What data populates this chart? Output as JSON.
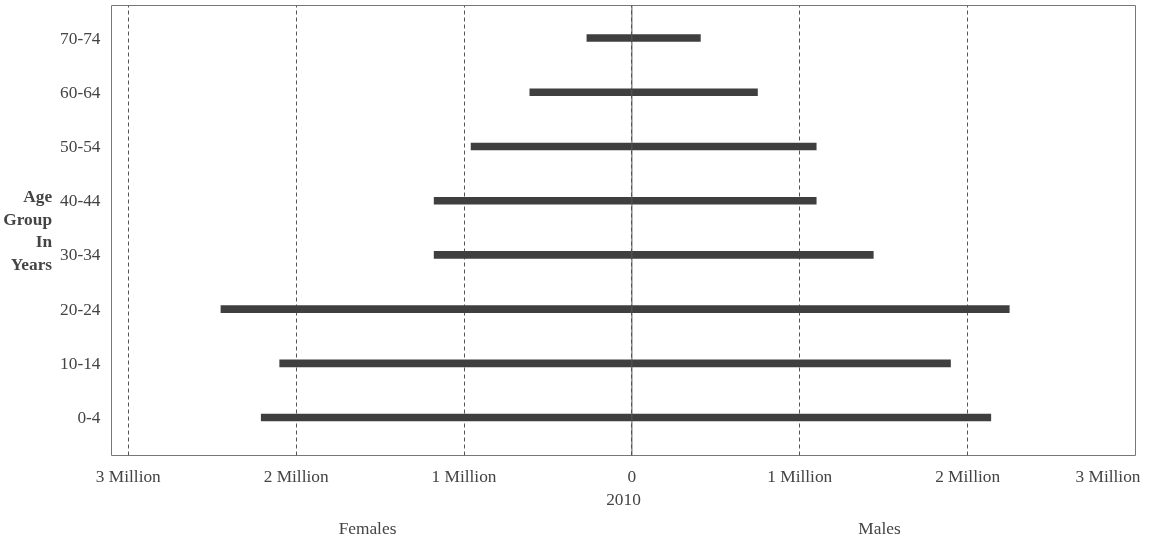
{
  "chart_data": {
    "type": "bar",
    "orientation": "horizontal",
    "stacked": true,
    "xlabel": "2010",
    "ylabel": "Age Group In Years",
    "categories": [
      "70-74",
      "60-64",
      "50-54",
      "40-44",
      "30-34",
      "20-24",
      "10-14",
      "0-4"
    ],
    "series": [
      {
        "color": "#3f3f3f",
        "values": [
          -0.27,
          -0.61,
          -0.96,
          -1.18,
          -1.18,
          -2.45,
          -2.1,
          -2.21
        ]
      },
      {
        "color": "#3f3f3f",
        "values": [
          0.41,
          0.75,
          1.1,
          1.1,
          1.44,
          2.25,
          1.9,
          2.14
        ]
      }
    ],
    "xlim": [
      -3.1,
      3.0
    ],
    "xticks": [
      {
        "value": -3,
        "label": "3 Million"
      },
      {
        "value": -2,
        "label": "2 Million"
      },
      {
        "value": -1,
        "label": "1 Million"
      },
      0,
      {
        "value": 1,
        "label": "1 Million"
      },
      {
        "value": 2,
        "label": "2 Million"
      },
      {
        "value": 3,
        "label": "3 Million"
      }
    ],
    "grid": "x",
    "annotations": [
      "Females",
      "Males"
    ],
    "ref_lines": [
      {
        "axis": "x",
        "value": 0,
        "color": "#555555",
        "line_style": "solid"
      }
    ]
  }
}
